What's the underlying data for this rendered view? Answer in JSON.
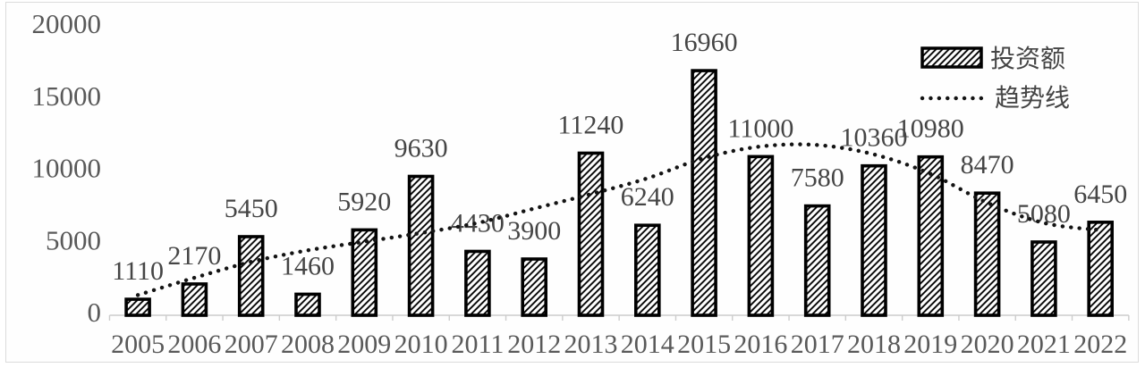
{
  "chart_data": {
    "type": "bar",
    "title": "",
    "xlabel": "",
    "ylabel": "",
    "categories": [
      "2005",
      "2006",
      "2007",
      "2008",
      "2009",
      "2010",
      "2011",
      "2012",
      "2013",
      "2014",
      "2015",
      "2016",
      "2017",
      "2018",
      "2019",
      "2020",
      "2021",
      "2022"
    ],
    "series": [
      {
        "name": "投资额",
        "type": "bar",
        "style": "diagonal-hatch",
        "values": [
          1110,
          2170,
          5450,
          1460,
          5920,
          9630,
          4430,
          3900,
          11240,
          6240,
          16960,
          11000,
          7580,
          10360,
          10980,
          8470,
          5080,
          6450
        ]
      },
      {
        "name": "趋势线",
        "type": "line",
        "style": "dotted",
        "values": [
          1400,
          2600,
          3700,
          4500,
          5100,
          5700,
          6400,
          7400,
          8400,
          9500,
          10900,
          11700,
          11800,
          11150,
          9800,
          7800,
          6400,
          5900
        ]
      }
    ],
    "ylim": [
      0,
      20000
    ],
    "yticks": [
      0,
      5000,
      10000,
      15000,
      20000
    ],
    "grid": false,
    "data_labels_visible": true,
    "legend_position": "top-right",
    "legend": {
      "bar_label": "投资额",
      "line_label": "趋势线"
    },
    "colors": {
      "background": "#ffffff",
      "bar_fill": "#ffffff",
      "bar_hatch": "#000000",
      "bar_border": "#000000",
      "trend_line": "#141414",
      "data_label": "#454545",
      "axis_label": "#595959",
      "axis_line": "#cccccc",
      "frame_border": "#dcdcdc"
    }
  }
}
